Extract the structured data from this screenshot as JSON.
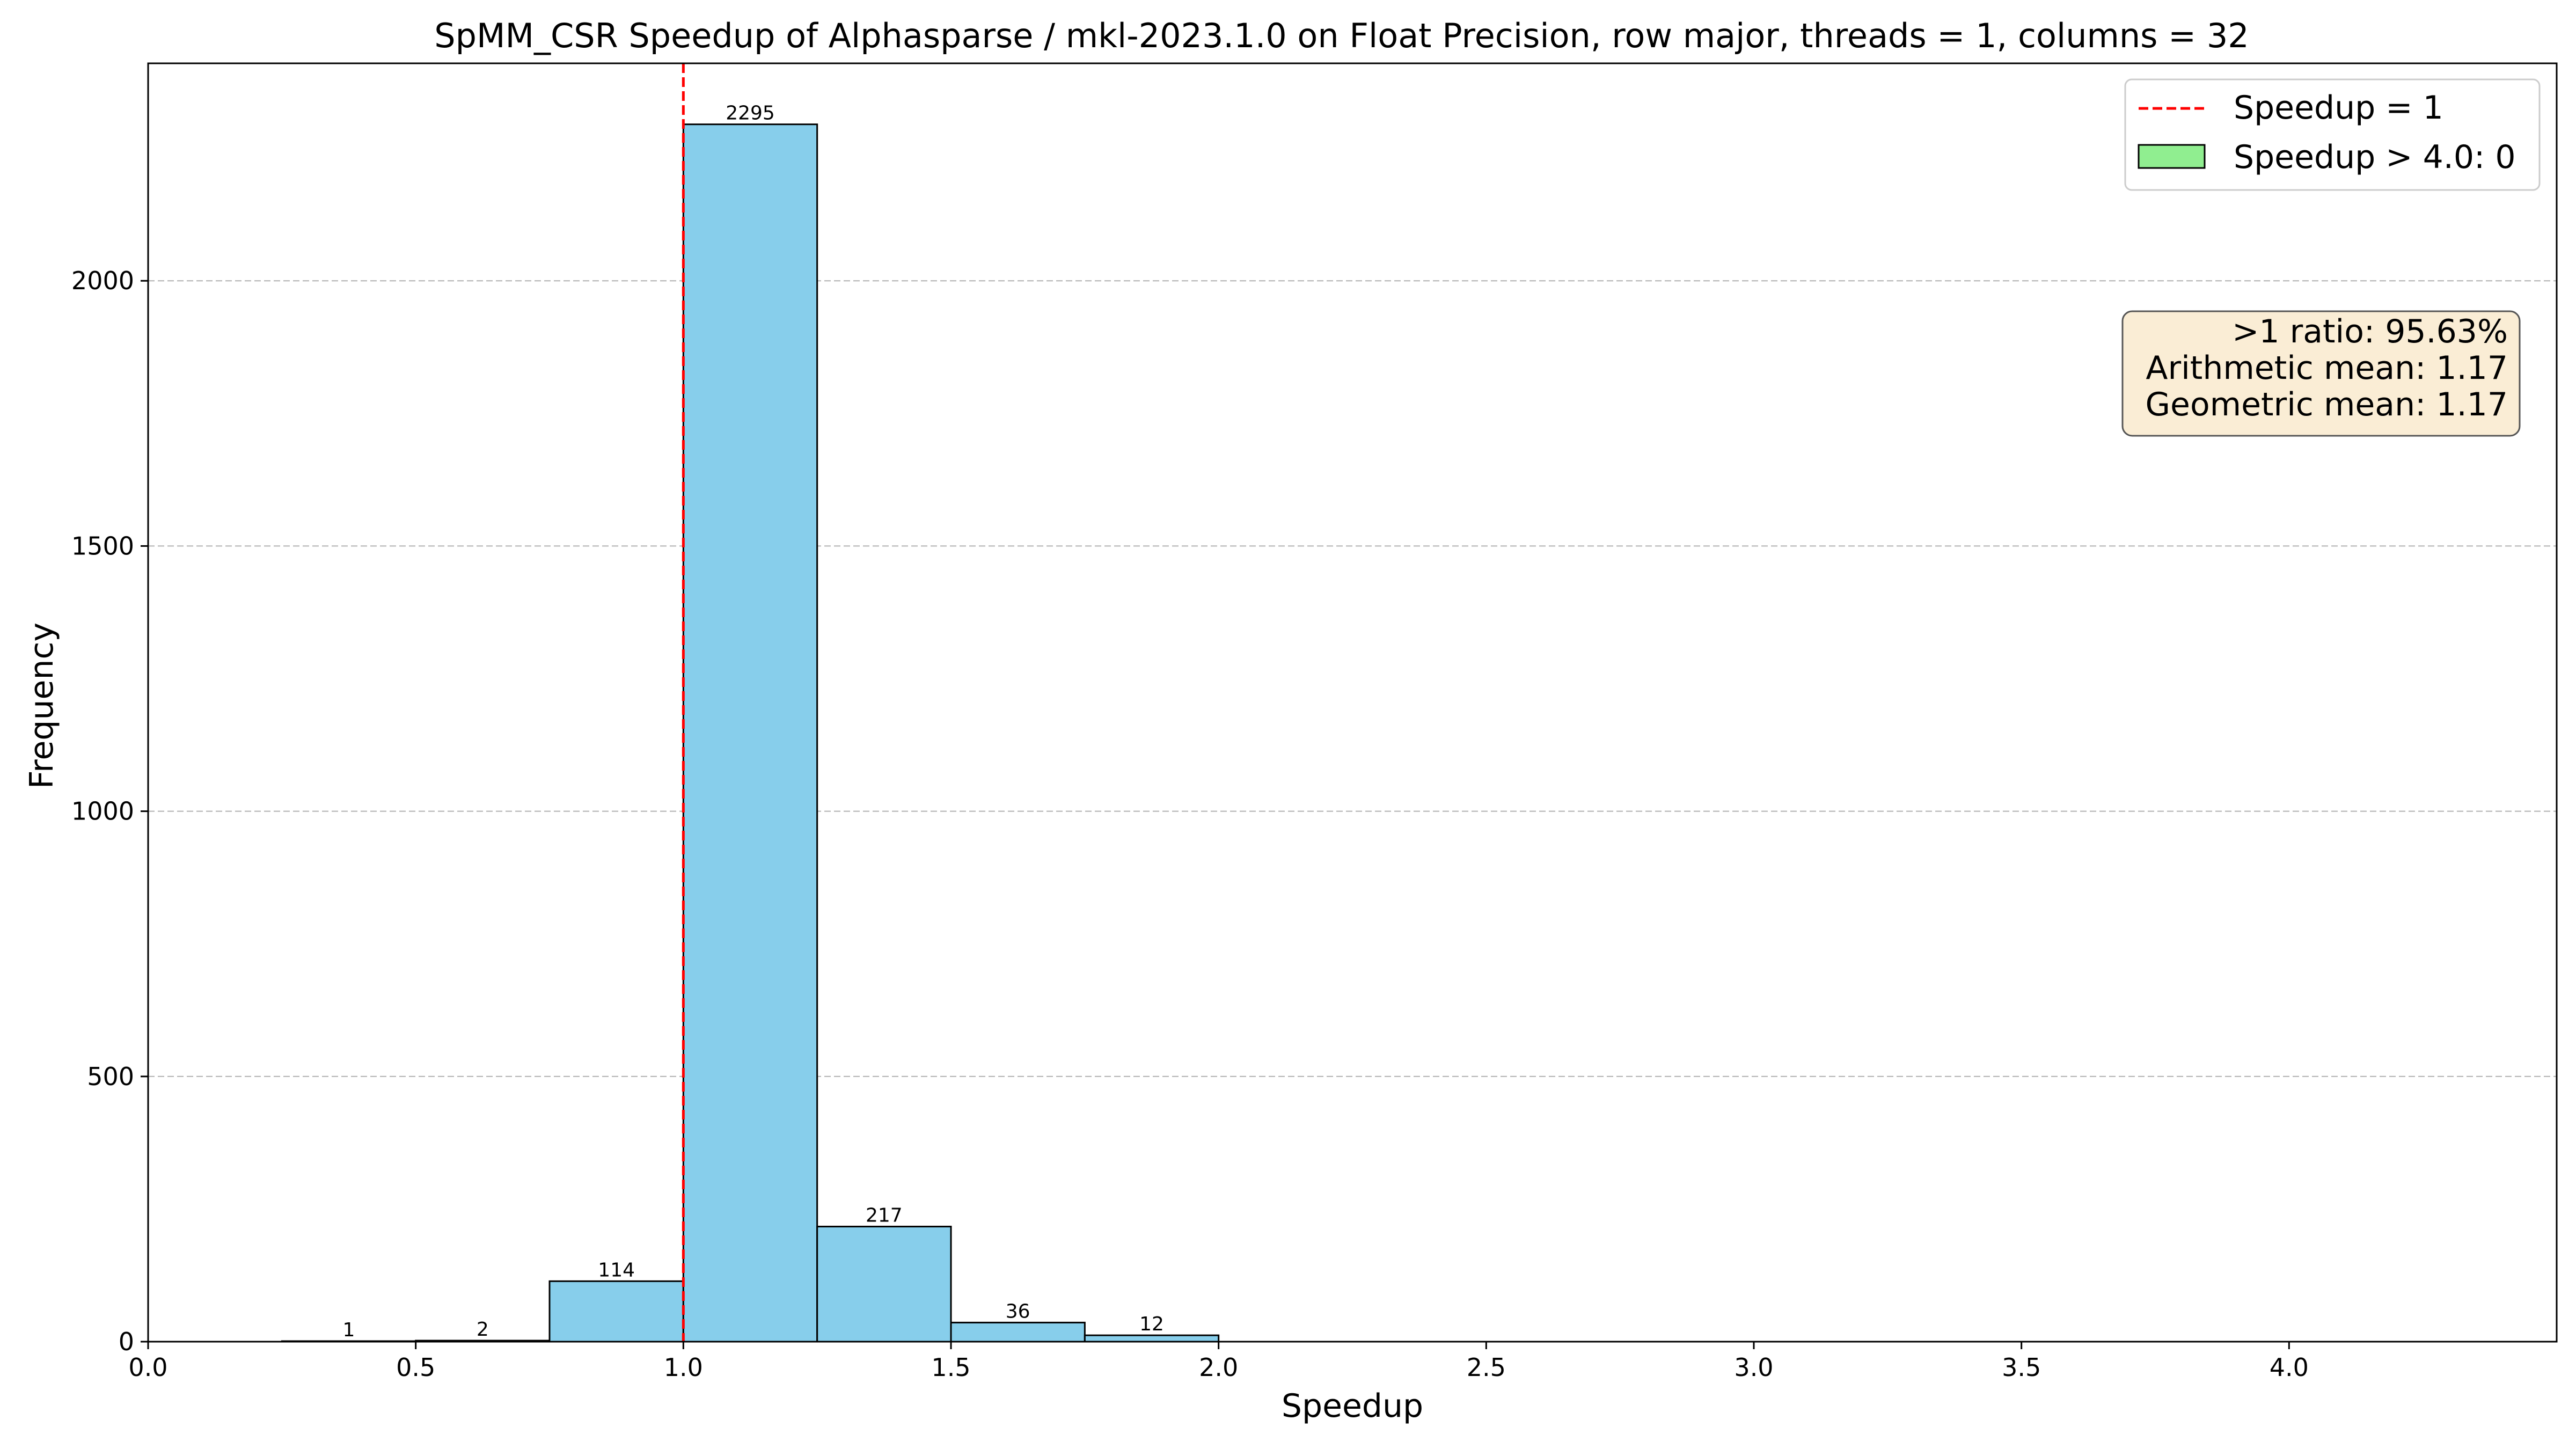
{
  "chart_data": {
    "type": "bar",
    "title": "SpMM_CSR Speedup of Alphasparse / mkl-2023.1.0 on Float Precision, row major, threads = 1, columns = 32",
    "xlabel": "Speedup",
    "ylabel": "Frequency",
    "xlim": [
      0.0,
      4.5
    ],
    "ylim": [
      0,
      2410
    ],
    "xticks": [
      0.0,
      0.5,
      1.0,
      1.5,
      2.0,
      2.5,
      3.0,
      3.5,
      4.0
    ],
    "xtick_labels": [
      "0.0",
      "0.5",
      "1.0",
      "1.5",
      "2.0",
      "2.5",
      "3.0",
      "3.5",
      "4.0"
    ],
    "yticks": [
      0,
      500,
      1000,
      1500,
      2000
    ],
    "ytick_labels": [
      "0",
      "500",
      "1000",
      "1500",
      "2000"
    ],
    "grid": "y-dashed",
    "bins": [
      {
        "start": 0.25,
        "end": 0.5,
        "value": 1,
        "label": "1"
      },
      {
        "start": 0.5,
        "end": 0.75,
        "value": 2,
        "label": "2"
      },
      {
        "start": 0.75,
        "end": 1.0,
        "value": 114,
        "label": "114"
      },
      {
        "start": 1.0,
        "end": 1.25,
        "value": 2295,
        "label": "2295"
      },
      {
        "start": 1.25,
        "end": 1.5,
        "value": 217,
        "label": "217"
      },
      {
        "start": 1.5,
        "end": 1.75,
        "value": 36,
        "label": "36"
      },
      {
        "start": 1.75,
        "end": 2.0,
        "value": 12,
        "label": "12"
      }
    ],
    "reference_line": {
      "x": 1.0,
      "label": "Speedup = 1"
    },
    "legend": {
      "position": "top-right",
      "entries": [
        {
          "label": "Speedup = 1",
          "kind": "dashed-line",
          "color": "#ff0000"
        },
        {
          "label": "Speedup > 4.0: 0",
          "kind": "patch",
          "color": "#90ee90"
        }
      ]
    },
    "stats_box": {
      "lines": [
        ">1 ratio: 95.63%",
        "Arithmetic mean: 1.17",
        "Geometric mean: 1.17"
      ]
    },
    "colors": {
      "bar": "#87ceeb",
      "bar_edge": "#000000",
      "reference_line": "#ff0000",
      "overflow_patch": "#90ee90",
      "stats_box_fill": "#f5deb3",
      "grid": "#b0b0b0"
    }
  }
}
